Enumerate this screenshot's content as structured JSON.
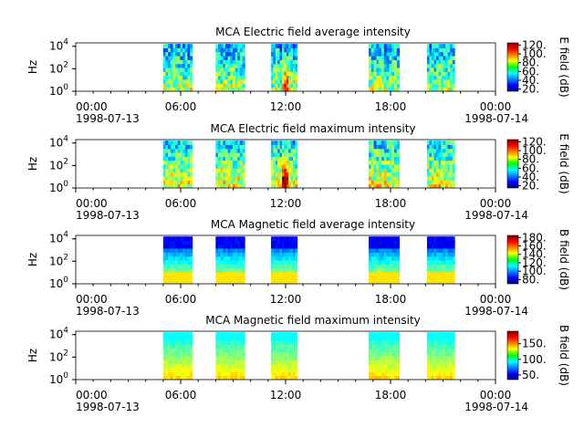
{
  "chart_data": [
    {
      "type": "heatmap",
      "title": "MCA  Electric field average intensity",
      "ylabel": "Hz",
      "colorbar_label": "E field (dB)",
      "colorbar_ticks": [
        "20.",
        "40.",
        "60.",
        "80.",
        "100.",
        "120."
      ],
      "colorbar_range": [
        15,
        125
      ],
      "yscale": "log",
      "ylim": [
        1,
        20000
      ],
      "y_ticks": [
        "10^0",
        "10^2",
        "10^4"
      ],
      "xlim": [
        "1998-07-13 00:00",
        "1998-07-14 00:00"
      ],
      "x_ticks": [
        "00:00",
        "06:00",
        "12:00",
        "18:00",
        "00:00"
      ],
      "x_date_labels": [
        "1998-07-13",
        "1998-07-14"
      ],
      "passes": [
        {
          "start": "05:00",
          "end": "06:40"
        },
        {
          "start": "08:00",
          "end": "09:40"
        },
        {
          "start": "11:10",
          "end": "12:40"
        },
        {
          "start": "16:45",
          "end": "18:30"
        },
        {
          "start": "20:05",
          "end": "21:40"
        }
      ]
    },
    {
      "type": "heatmap",
      "title": "MCA  Electric field maximum intensity",
      "ylabel": "Hz",
      "colorbar_label": "E field (dB)",
      "colorbar_ticks": [
        "20.",
        "40.",
        "60.",
        "80.",
        "100.",
        "120."
      ],
      "colorbar_range": [
        15,
        125
      ],
      "yscale": "log",
      "ylim": [
        1,
        20000
      ],
      "y_ticks": [
        "10^0",
        "10^2",
        "10^4"
      ],
      "xlim": [
        "1998-07-13 00:00",
        "1998-07-14 00:00"
      ],
      "x_ticks": [
        "00:00",
        "06:00",
        "12:00",
        "18:00",
        "00:00"
      ],
      "x_date_labels": [
        "1998-07-13",
        "1998-07-14"
      ],
      "passes": [
        {
          "start": "05:00",
          "end": "06:40"
        },
        {
          "start": "08:00",
          "end": "09:40"
        },
        {
          "start": "11:10",
          "end": "12:40"
        },
        {
          "start": "16:45",
          "end": "18:30"
        },
        {
          "start": "20:05",
          "end": "21:40"
        }
      ]
    },
    {
      "type": "heatmap",
      "title": "MCA  Magnetic field average intensity",
      "ylabel": "Hz",
      "colorbar_label": "B field (dB)",
      "colorbar_ticks": [
        "80.",
        "100.",
        "120.",
        "140.",
        "160.",
        "180."
      ],
      "colorbar_range": [
        70,
        185
      ],
      "yscale": "log",
      "ylim": [
        1,
        20000
      ],
      "y_ticks": [
        "10^0",
        "10^2",
        "10^4"
      ],
      "xlim": [
        "1998-07-13 00:00",
        "1998-07-14 00:00"
      ],
      "x_ticks": [
        "00:00",
        "06:00",
        "12:00",
        "18:00",
        "00:00"
      ],
      "x_date_labels": [
        "1998-07-13",
        "1998-07-14"
      ],
      "passes": [
        {
          "start": "05:00",
          "end": "06:40"
        },
        {
          "start": "08:00",
          "end": "09:40"
        },
        {
          "start": "11:10",
          "end": "12:40"
        },
        {
          "start": "16:45",
          "end": "18:30"
        },
        {
          "start": "20:05",
          "end": "21:40"
        }
      ]
    },
    {
      "type": "heatmap",
      "title": "MCA  Magnetic field maximum intensity",
      "ylabel": "Hz",
      "colorbar_label": "B field (dB)",
      "colorbar_ticks": [
        "50.",
        "100.",
        "150."
      ],
      "colorbar_range": [
        35,
        190
      ],
      "yscale": "log",
      "ylim": [
        1,
        20000
      ],
      "y_ticks": [
        "10^0",
        "10^2",
        "10^4"
      ],
      "xlim": [
        "1998-07-13 00:00",
        "1998-07-14 00:00"
      ],
      "x_ticks": [
        "00:00",
        "06:00",
        "12:00",
        "18:00",
        "00:00"
      ],
      "x_date_labels": [
        "1998-07-13",
        "1998-07-14"
      ],
      "passes": [
        {
          "start": "05:00",
          "end": "06:40"
        },
        {
          "start": "08:00",
          "end": "09:40"
        },
        {
          "start": "11:10",
          "end": "12:40"
        },
        {
          "start": "16:45",
          "end": "18:30"
        },
        {
          "start": "20:05",
          "end": "21:40"
        }
      ]
    }
  ]
}
